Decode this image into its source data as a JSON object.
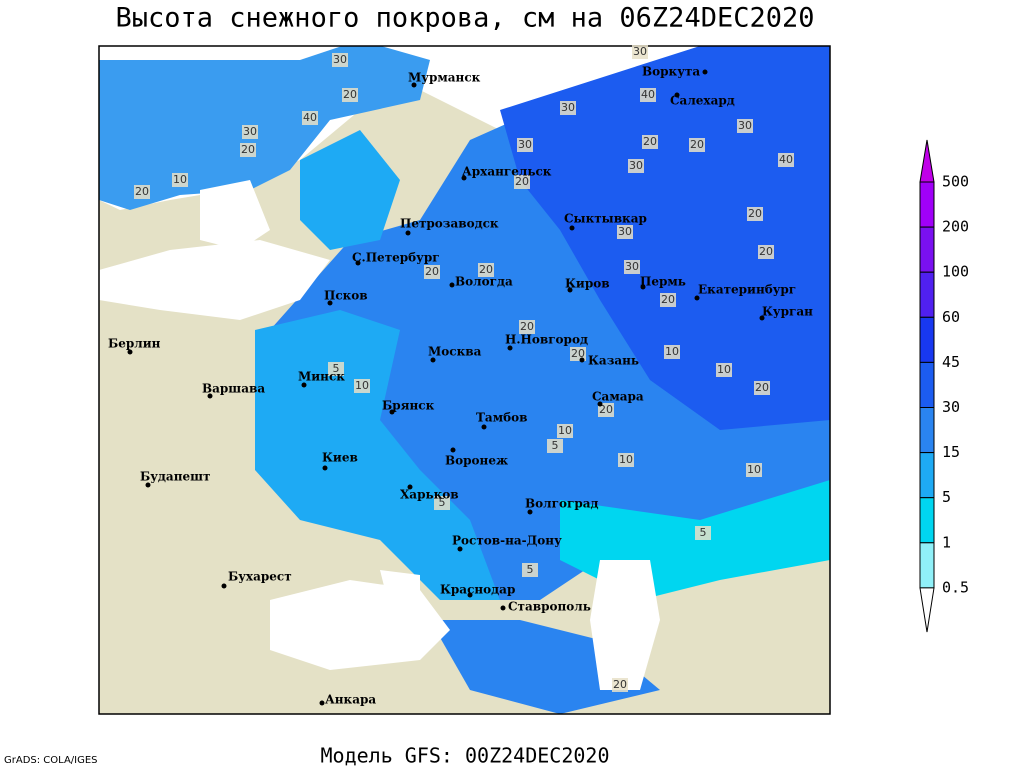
{
  "title": "Высота снежного покрова, см на 06Z24DEC2020",
  "footer": "Модель GFS: 00Z24DEC2020",
  "credit": "GrADS: COLA/IGES",
  "cities": [
    "Мурманск",
    "Воркута",
    "Салехард",
    "Архангельск",
    "Сыктывкар",
    "Петрозаводск",
    "С.Петербург",
    "Вологда",
    "Киров",
    "Пермь",
    "Екатеринбург",
    "Курган",
    "Псков",
    "Берлин",
    "Н.Новгород",
    "Москва",
    "Казань",
    "Минск",
    "Варшава",
    "Самара",
    "Брянск",
    "Тамбов",
    "Киев",
    "Воронеж",
    "Будапешт",
    "Харьков",
    "Волгоград",
    "Ростов-на-Дону",
    "Бухарест",
    "Краснодар",
    "Ставрополь",
    "Анкара"
  ],
  "contour_labels": [
    30,
    20,
    40,
    30,
    20,
    10,
    20,
    30,
    40,
    30,
    30,
    20,
    30,
    40,
    20,
    30,
    20,
    20,
    30,
    20,
    30,
    20,
    20,
    20,
    20,
    20,
    10,
    20,
    5,
    10,
    20,
    10,
    10,
    10,
    5,
    5,
    5,
    5,
    10,
    20
  ],
  "legend": {
    "levels": [
      500,
      200,
      100,
      60,
      45,
      30,
      15,
      5,
      1,
      0.5
    ],
    "top_color": "#c000e8",
    "colors": [
      "#a000f8",
      "#7a10f0",
      "#5020f0",
      "#1838f0",
      "#1c5cf0",
      "#2a84f0",
      "#1eaaf4",
      "#00d6f0",
      "#90f0f8"
    ],
    "bottom_color": "#ffffff"
  }
}
